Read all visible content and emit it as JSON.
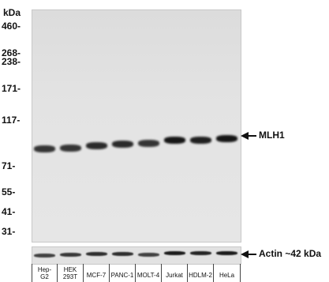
{
  "axis": {
    "unit": "kDa",
    "markers": [
      "460-",
      "268-",
      "238-",
      "171-",
      "117-",
      "71-",
      "55-",
      "41-",
      "31-"
    ]
  },
  "targets": {
    "main": "MLH1",
    "loading": "Actin ~42 kDa"
  },
  "lanes": [
    [
      "Hep-",
      "G2"
    ],
    [
      "HEK",
      "293T"
    ],
    [
      "MCF-7"
    ],
    [
      "PANC-1"
    ],
    [
      "MOLT-4"
    ],
    [
      "Jurkat"
    ],
    [
      "HDLM-2"
    ],
    [
      "HeLa"
    ]
  ],
  "band_intensity": {
    "mlh1": [
      0.85,
      0.85,
      0.9,
      0.9,
      0.85,
      1.0,
      0.95,
      1.0
    ],
    "actin": [
      0.8,
      0.85,
      0.9,
      0.9,
      0.8,
      1.0,
      0.95,
      1.0
    ]
  }
}
